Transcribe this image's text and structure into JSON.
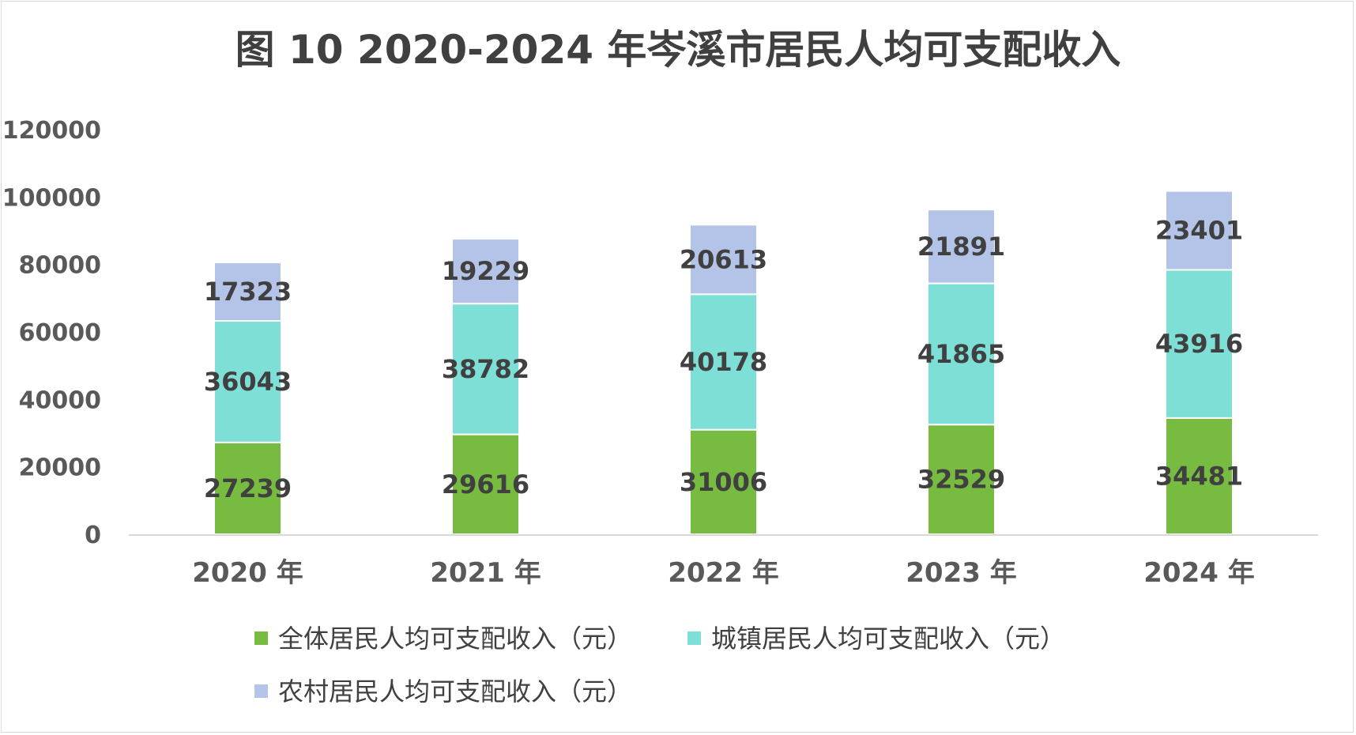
{
  "chart_data": {
    "type": "bar",
    "stacked": true,
    "title": "图 10    2020-2024 年岑溪市居民人均可支配收入",
    "xlabel": "",
    "ylabel": "",
    "categories": [
      "2020 年",
      "2021 年",
      "2022 年",
      "2023 年",
      "2024 年"
    ],
    "series": [
      {
        "name": "全体居民人均可支配收入（元）",
        "color": "#77bb41",
        "values": [
          27239,
          29616,
          31006,
          32529,
          34481
        ]
      },
      {
        "name": "城镇居民人均可支配收入（元）",
        "color": "#7ddfd6",
        "values": [
          36043,
          38782,
          40178,
          41865,
          43916
        ]
      },
      {
        "name": "农村居民人均可支配收入（元）",
        "color": "#b4c3e8",
        "values": [
          17323,
          19229,
          20613,
          21891,
          23401
        ]
      }
    ],
    "ylim": [
      0,
      120000
    ],
    "yticks": [
      "0",
      "20000",
      "40000",
      "60000",
      "80000",
      "100000",
      "120000"
    ],
    "grid": false,
    "legend_position": "bottom",
    "data_labels": true
  }
}
